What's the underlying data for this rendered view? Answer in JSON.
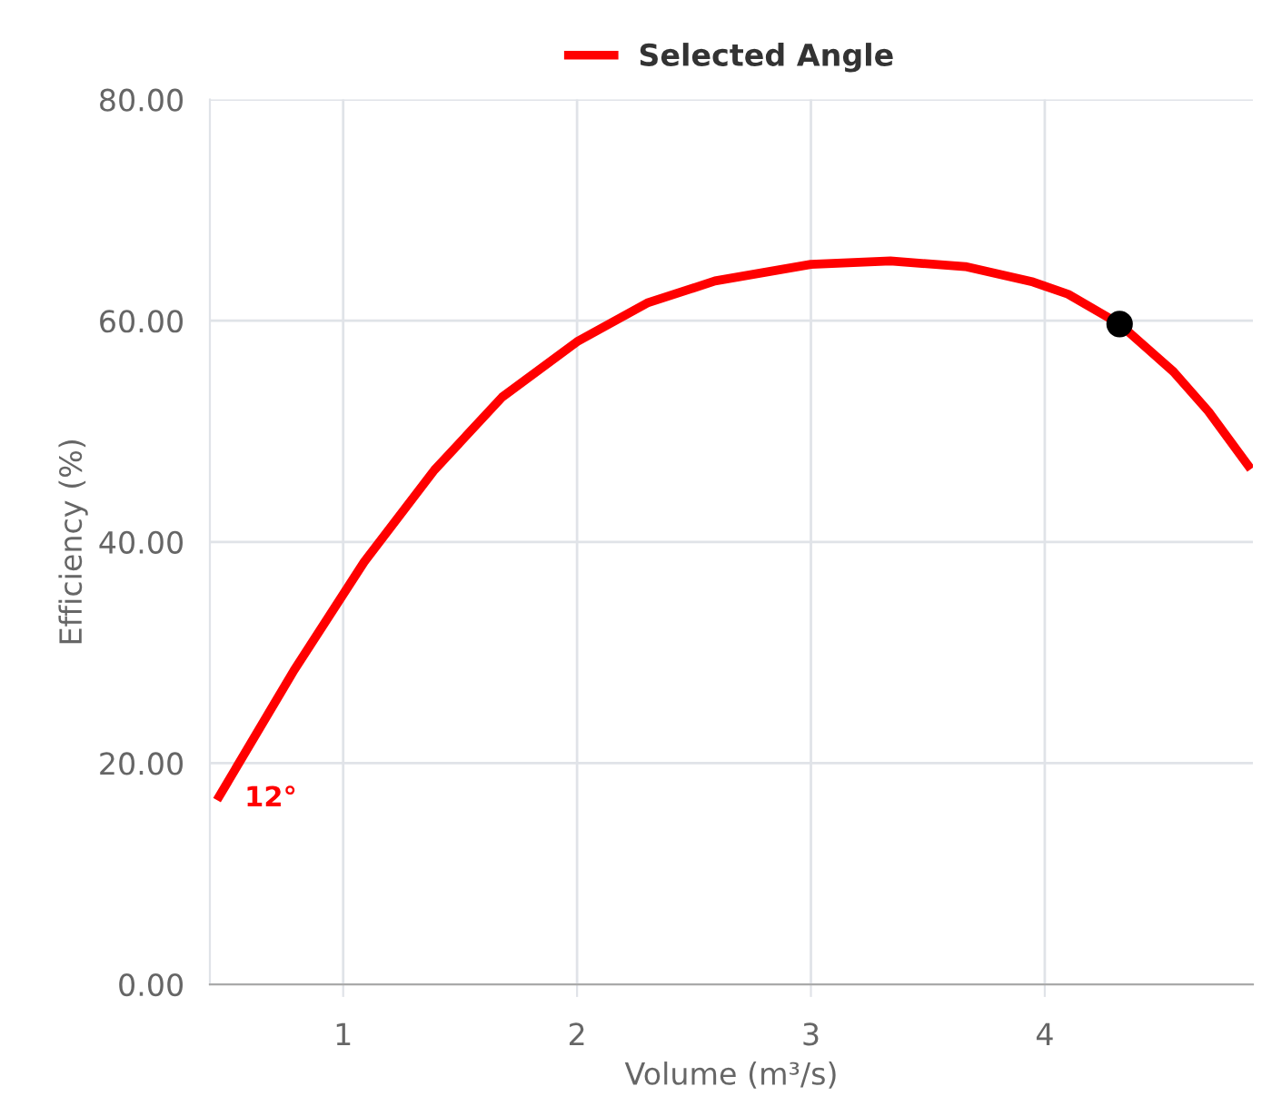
{
  "chart_data": {
    "type": "line",
    "xlabel": "Volume (m³/s)",
    "ylabel": "Efficiency (%)",
    "xlim": [
      0.43,
      4.89
    ],
    "xticks": [
      1,
      2,
      3,
      4
    ],
    "ylim": [
      0,
      80
    ],
    "yticks": [
      {
        "value": 0,
        "label": "0.00"
      },
      {
        "value": 20,
        "label": "20.00"
      },
      {
        "value": 40,
        "label": "40.00"
      },
      {
        "value": 60,
        "label": "60.00"
      },
      {
        "value": 80,
        "label": "80.00"
      }
    ],
    "grid": true,
    "legend": "top",
    "line_style": "solid",
    "series": [
      {
        "name": "Selected Angle",
        "marker": "none",
        "color": "#ff0000",
        "x": [
          0.47,
          0.79,
          1.09,
          1.39,
          1.68,
          2.0,
          2.3,
          2.59,
          3.0,
          3.34,
          3.66,
          3.95,
          4.1,
          4.32,
          4.55,
          4.7,
          4.87
        ],
        "values": [
          17.0,
          28.4,
          38.2,
          46.5,
          53.1,
          58.1,
          61.6,
          63.6,
          65.1,
          65.4,
          64.9,
          63.5,
          62.4,
          59.7,
          55.4,
          51.8,
          46.9
        ]
      },
      {
        "type": "scatter",
        "marker": "circle",
        "color": "#000000",
        "x": [
          4.32
        ],
        "values": [
          59.7
        ]
      }
    ],
    "annotations": [
      {
        "text": "12°",
        "x": 0.47,
        "y": 17.0
      }
    ]
  }
}
